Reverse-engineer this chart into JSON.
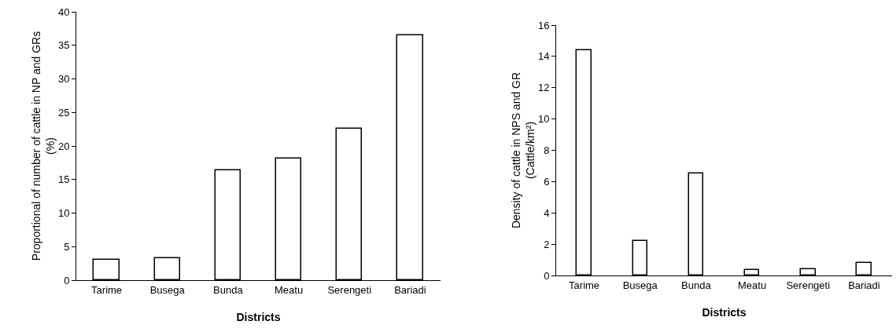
{
  "chart_data": [
    {
      "type": "bar",
      "xlabel": "Districts",
      "ylabel": "Proportional of number of cattle in NP and GRs\n(%)",
      "categories": [
        "Tarime",
        "Busega",
        "Bunda",
        "Meatu",
        "Serengeti",
        "Bariadi"
      ],
      "values": [
        3.0,
        3.3,
        16.4,
        18.1,
        22.6,
        36.5
      ],
      "color": "#ffffff",
      "ylim": [
        0,
        40
      ],
      "yticks": [
        0,
        5,
        10,
        15,
        20,
        25,
        30,
        35,
        40
      ],
      "grid": false
    },
    {
      "type": "bar",
      "xlabel": "Districts",
      "ylabel": "Density of cattle in NPS and GR\n(Cattle/km²)",
      "categories": [
        "Tarime",
        "Busega",
        "Bunda",
        "Meatu",
        "Serengeti",
        "Bariadi"
      ],
      "values": [
        14.4,
        2.2,
        6.5,
        0.35,
        0.4,
        0.8
      ],
      "color": "#ffffff",
      "ylim": [
        0,
        16
      ],
      "yticks": [
        0,
        2,
        4,
        6,
        8,
        10,
        12,
        14,
        16
      ],
      "grid": false
    }
  ]
}
